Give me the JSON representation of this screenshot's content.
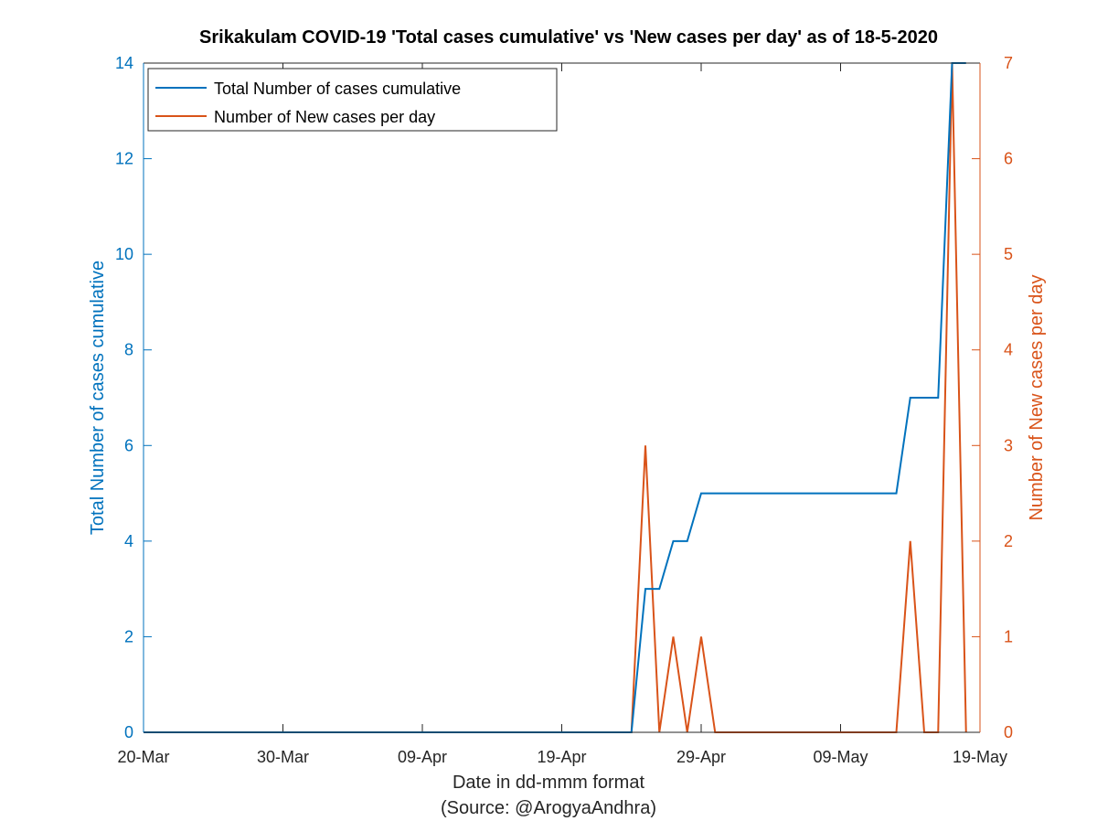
{
  "chart_data": {
    "type": "line",
    "title": "Srikakulam COVID-19 'Total cases cumulative' vs 'New cases per day' as of 18-5-2020",
    "xlabel": "Date in dd-mmm format",
    "source_note": "(Source: @ArogyaAndhra)",
    "xlim": [
      "2020-03-20",
      "2020-05-19"
    ],
    "x_ticks": [
      "20-Mar",
      "30-Mar",
      "09-Apr",
      "19-Apr",
      "29-Apr",
      "09-May",
      "19-May"
    ],
    "y_left": {
      "label": "Total Number of cases cumulative",
      "lim": [
        0,
        14
      ],
      "ticks": [
        "0",
        "2",
        "4",
        "6",
        "8",
        "10",
        "12",
        "14"
      ],
      "color": "#0072bd"
    },
    "y_right": {
      "label": "Number of New cases per day",
      "lim": [
        0,
        7
      ],
      "ticks": [
        "0",
        "1",
        "2",
        "3",
        "4",
        "5",
        "6",
        "7"
      ],
      "color": "#d95319"
    },
    "legend_position": "top-left",
    "grid": false,
    "series": [
      {
        "name": "Total Number of cases cumulative",
        "axis": "left",
        "color": "#0072bd",
        "points": [
          [
            "2020-03-20",
            0
          ],
          [
            "2020-04-24",
            0
          ],
          [
            "2020-04-25",
            3
          ],
          [
            "2020-04-26",
            3
          ],
          [
            "2020-04-27",
            4
          ],
          [
            "2020-04-28",
            4
          ],
          [
            "2020-04-29",
            5
          ],
          [
            "2020-05-13",
            5
          ],
          [
            "2020-05-14",
            7
          ],
          [
            "2020-05-16",
            7
          ],
          [
            "2020-05-17",
            14
          ],
          [
            "2020-05-18",
            14
          ]
        ]
      },
      {
        "name": "Number of New cases per day",
        "axis": "right",
        "color": "#d95319",
        "points": [
          [
            "2020-03-24",
            0
          ],
          [
            "2020-04-24",
            0
          ],
          [
            "2020-04-25",
            3
          ],
          [
            "2020-04-26",
            0
          ],
          [
            "2020-04-27",
            1
          ],
          [
            "2020-04-28",
            0
          ],
          [
            "2020-04-29",
            1
          ],
          [
            "2020-04-30",
            0
          ],
          [
            "2020-05-12",
            0
          ],
          [
            "2020-05-13",
            0
          ],
          [
            "2020-05-14",
            2
          ],
          [
            "2020-05-15",
            0
          ],
          [
            "2020-05-16",
            0
          ],
          [
            "2020-05-17",
            7
          ],
          [
            "2020-05-18",
            0
          ]
        ]
      }
    ]
  }
}
